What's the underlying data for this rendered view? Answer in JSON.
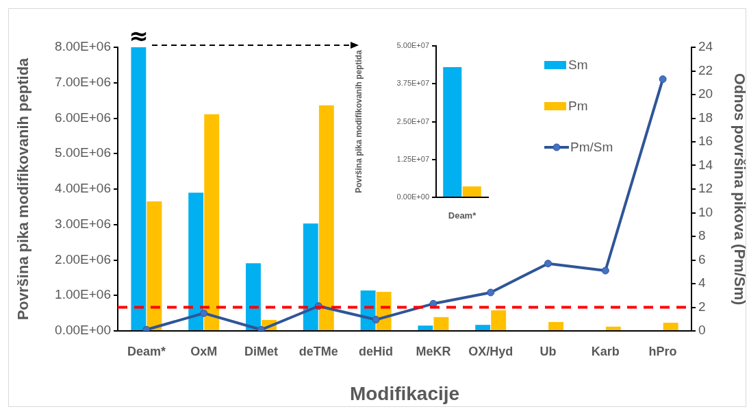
{
  "chart_data": [
    {
      "type": "bar",
      "xlabel": "Modifikacije",
      "ylabel": "Površina pika modifikovanih peptida",
      "y2label": "Odnos površina pikova (Pm/Sm)",
      "categories": [
        "Deam*",
        "OxM",
        "DiMet",
        "deTMe",
        "deHid",
        "MeKR",
        "OX/Hyd",
        "Ub",
        "Karb",
        "hPro"
      ],
      "series": [
        {
          "name": "Sm",
          "color": "#00b0f0",
          "values": [
            8000000,
            3900000,
            1910000,
            3030000,
            1140000,
            150000,
            170000,
            null,
            0,
            0
          ]
        },
        {
          "name": "Pm",
          "color": "#ffc000",
          "values": [
            3650000,
            6110000,
            310000,
            6360000,
            1100000,
            390000,
            580000,
            250000,
            120000,
            230000
          ]
        },
        {
          "name": "Pm/Sm",
          "type": "line",
          "axis": "y2",
          "color": "#2f5597",
          "values": [
            0.1,
            1.5,
            0.1,
            2.1,
            0.95,
            2.3,
            3.25,
            5.7,
            5.1,
            21.3
          ]
        }
      ],
      "ylim": [
        0,
        8000000
      ],
      "yticks": [
        {
          "value": 0,
          "label": "0.00E+00"
        },
        {
          "value": 1000000,
          "label": "1.00E+06"
        },
        {
          "value": 2000000,
          "label": "2.00E+06"
        },
        {
          "value": 3000000,
          "label": "3.00E+06"
        },
        {
          "value": 4000000,
          "label": "4.00E+06"
        },
        {
          "value": 5000000,
          "label": "5.00E+06"
        },
        {
          "value": 6000000,
          "label": "6.00E+06"
        },
        {
          "value": 7000000,
          "label": "7.00E+06"
        },
        {
          "value": 8000000,
          "label": "8.00E+06"
        }
      ],
      "y2lim": [
        0,
        24
      ],
      "y2ticks": [
        0,
        2,
        4,
        6,
        8,
        10,
        12,
        14,
        16,
        18,
        20,
        22,
        24
      ],
      "ref_lines": [
        {
          "axis": "y2",
          "value": 2,
          "color": "#ff0000",
          "line_style": "dashed"
        }
      ],
      "annotations": [
        {
          "text": "≈",
          "x": "Deam*",
          "y": 8000000
        }
      ],
      "legend": "top right",
      "marker": "circle",
      "grid": false
    },
    {
      "type": "bar",
      "ylabel": "Površina pika modifikovanih peptida",
      "categories": [
        "Deam*"
      ],
      "series": [
        {
          "color": "#00b0f0",
          "values": [
            43000000
          ]
        },
        {
          "color": "#ffc000",
          "values": [
            3600000
          ]
        }
      ],
      "ylim": [
        0,
        50000000
      ],
      "yticks": [
        {
          "value": 0,
          "label": "0.00E+00"
        },
        {
          "value": 12500000,
          "label": "1.25E+07"
        },
        {
          "value": 25000000,
          "label": "2.50E+07"
        },
        {
          "value": 37500000,
          "label": "3.75E+07"
        },
        {
          "value": 50000000,
          "label": "5.00E+07"
        }
      ],
      "legend": false,
      "grid": false
    }
  ]
}
